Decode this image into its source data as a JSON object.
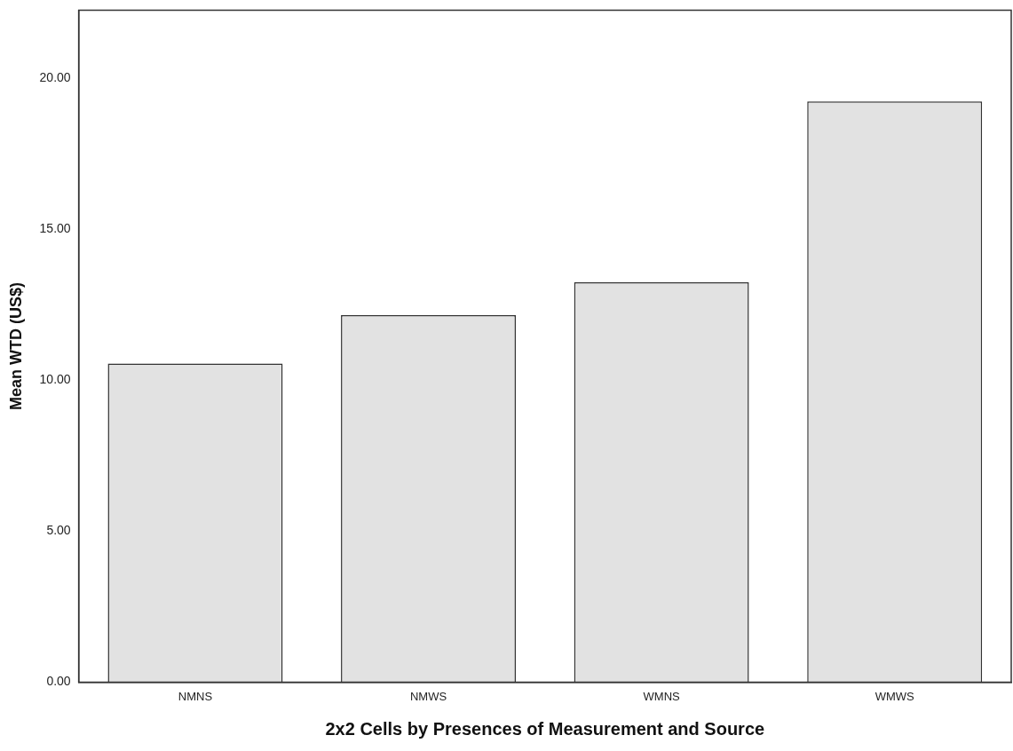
{
  "chart_data": {
    "type": "bar",
    "xlabel": "2x2 Cells by Presences of Measurement and Source",
    "ylabel": "Mean WTD (US$)",
    "categories": [
      "NMNS",
      "NMWS",
      "WMNS",
      "WMWS"
    ],
    "values": [
      10.55,
      12.15,
      13.24,
      19.23
    ],
    "color": "#e2e2e2",
    "ylim": [
      0,
      22.25
    ],
    "yticks": [
      {
        "value": 0,
        "label": "0.00"
      },
      {
        "value": 5,
        "label": "5.00"
      },
      {
        "value": 10,
        "label": "10.00"
      },
      {
        "value": 15,
        "label": "15.00"
      },
      {
        "value": 20,
        "label": "20.00"
      }
    ],
    "grid": false,
    "legend": false
  }
}
